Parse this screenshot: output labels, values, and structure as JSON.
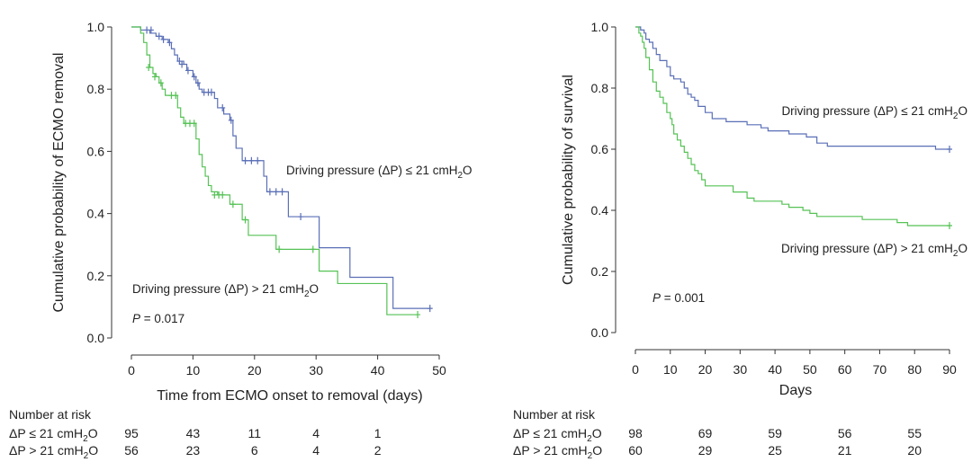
{
  "chart_data": [
    {
      "type": "line",
      "subtype": "kaplan-meier",
      "xlabel": "Time from ECMO onset to removal (days)",
      "ylabel": "Cumulative probability of ECMO removal",
      "xlim": [
        0,
        50
      ],
      "ylim": [
        0,
        1
      ],
      "xticks": [
        "0",
        "10",
        "20",
        "30",
        "40",
        "50"
      ],
      "yticks": [
        "0.0",
        "0.2",
        "0.4",
        "0.6",
        "0.8",
        "1.0"
      ],
      "grid": false,
      "pvalue": {
        "italic": "P",
        "text": " = 0.017"
      },
      "series": [
        {
          "name": "Driving pressure (ΔP) ≤ 21 cmH2O",
          "label": {
            "main": "Driving pressure (ΔP) ≤ 21 cmH",
            "sub": "2",
            "tail": "O"
          },
          "color": "#5a6fb6",
          "steps": [
            [
              0,
              1.0
            ],
            [
              1.5,
              0.99
            ],
            [
              3,
              0.98
            ],
            [
              4,
              0.97
            ],
            [
              5,
              0.96
            ],
            [
              6,
              0.95
            ],
            [
              6.5,
              0.93
            ],
            [
              7,
              0.91
            ],
            [
              7.5,
              0.89
            ],
            [
              8.5,
              0.88
            ],
            [
              9,
              0.86
            ],
            [
              10,
              0.84
            ],
            [
              10.5,
              0.82
            ],
            [
              11,
              0.8
            ],
            [
              11.5,
              0.79
            ],
            [
              13.5,
              0.77
            ],
            [
              14,
              0.74
            ],
            [
              15,
              0.72
            ],
            [
              16,
              0.7
            ],
            [
              16.5,
              0.65
            ],
            [
              17,
              0.61
            ],
            [
              18,
              0.57
            ],
            [
              21.5,
              0.52
            ],
            [
              22,
              0.47
            ],
            [
              25.5,
              0.39
            ],
            [
              30.5,
              0.29
            ],
            [
              35.5,
              0.195
            ],
            [
              42.5,
              0.095
            ],
            [
              48.5,
              0.095
            ]
          ],
          "censor": [
            [
              2.5,
              0.99
            ],
            [
              3.2,
              0.99
            ],
            [
              4.5,
              0.97
            ],
            [
              5.2,
              0.96
            ],
            [
              6.2,
              0.95
            ],
            [
              7.8,
              0.89
            ],
            [
              8.2,
              0.88
            ],
            [
              9.2,
              0.86
            ],
            [
              10.2,
              0.84
            ],
            [
              10.8,
              0.82
            ],
            [
              11.8,
              0.79
            ],
            [
              12.5,
              0.79
            ],
            [
              13,
              0.79
            ],
            [
              14.8,
              0.74
            ],
            [
              16.2,
              0.7
            ],
            [
              18.5,
              0.57
            ],
            [
              19.5,
              0.57
            ],
            [
              20.5,
              0.57
            ],
            [
              22.5,
              0.47
            ],
            [
              23.5,
              0.47
            ],
            [
              24.5,
              0.47
            ],
            [
              27.5,
              0.39
            ],
            [
              48.5,
              0.095
            ]
          ]
        },
        {
          "name": "Driving pressure (ΔP) > 21 cmH2O",
          "label": {
            "main": "Driving pressure (ΔP) > 21 cmH",
            "sub": "2",
            "tail": "O"
          },
          "color": "#55c255",
          "steps": [
            [
              0,
              1.0
            ],
            [
              1.5,
              0.98
            ],
            [
              2,
              0.95
            ],
            [
              2.5,
              0.91
            ],
            [
              3,
              0.87
            ],
            [
              3.5,
              0.85
            ],
            [
              4,
              0.84
            ],
            [
              4.5,
              0.82
            ],
            [
              5,
              0.8
            ],
            [
              5.5,
              0.78
            ],
            [
              7.5,
              0.74
            ],
            [
              8,
              0.71
            ],
            [
              8.5,
              0.69
            ],
            [
              10.5,
              0.64
            ],
            [
              11,
              0.59
            ],
            [
              11.5,
              0.55
            ],
            [
              12,
              0.52
            ],
            [
              12.5,
              0.49
            ],
            [
              13,
              0.47
            ],
            [
              14,
              0.46
            ],
            [
              16,
              0.43
            ],
            [
              18,
              0.38
            ],
            [
              19,
              0.33
            ],
            [
              23.5,
              0.285
            ],
            [
              30.5,
              0.215
            ],
            [
              33.5,
              0.175
            ],
            [
              41.5,
              0.075
            ],
            [
              46.5,
              0.075
            ]
          ],
          "censor": [
            [
              2.8,
              0.87
            ],
            [
              3.8,
              0.84
            ],
            [
              4.8,
              0.82
            ],
            [
              6.5,
              0.78
            ],
            [
              7.2,
              0.78
            ],
            [
              8.8,
              0.69
            ],
            [
              9.5,
              0.69
            ],
            [
              10.2,
              0.69
            ],
            [
              13.5,
              0.46
            ],
            [
              14.2,
              0.46
            ],
            [
              14.8,
              0.46
            ],
            [
              16.5,
              0.43
            ],
            [
              18.5,
              0.38
            ],
            [
              24,
              0.285
            ],
            [
              29.5,
              0.285
            ],
            [
              46.5,
              0.075
            ]
          ]
        }
      ],
      "risk_table": {
        "title": "Number at risk",
        "rows": [
          {
            "label": "ΔP ≤ 21 cmH2O",
            "label_main": "ΔP ≤ 21 cmH",
            "sub": "2",
            "tail": "O",
            "at": [
              0,
              10,
              20,
              30,
              40
            ],
            "values": [
              "95",
              "43",
              "11",
              "4",
              "1"
            ]
          },
          {
            "label": "ΔP > 21 cmH2O",
            "label_main": "ΔP > 21 cmH",
            "sub": "2",
            "tail": "O",
            "at": [
              0,
              10,
              20,
              30,
              40
            ],
            "values": [
              "56",
              "23",
              "6",
              "4",
              "2"
            ]
          }
        ]
      }
    },
    {
      "type": "line",
      "subtype": "kaplan-meier",
      "xlabel": "Days",
      "ylabel": "Cumulative probability of survival",
      "xlim": [
        0,
        90
      ],
      "ylim": [
        0,
        1
      ],
      "xticks": [
        "0",
        "10",
        "20",
        "30",
        "40",
        "50",
        "60",
        "70",
        "80",
        "90"
      ],
      "yticks": [
        "0.0",
        "0.2",
        "0.4",
        "0.6",
        "0.8",
        "1.0"
      ],
      "grid": false,
      "pvalue": {
        "italic": "P",
        "text": " = 0.001"
      },
      "series": [
        {
          "name": "Driving pressure (ΔP) ≤ 21 cmH2O",
          "label": {
            "main": "Driving pressure (ΔP) ≤ 21 cmH",
            "sub": "2",
            "tail": "O"
          },
          "color": "#5a6fb6",
          "steps": [
            [
              0,
              1.0
            ],
            [
              1.5,
              0.99
            ],
            [
              2.5,
              0.98
            ],
            [
              3,
              0.96
            ],
            [
              4,
              0.95
            ],
            [
              5,
              0.93
            ],
            [
              6,
              0.91
            ],
            [
              7,
              0.89
            ],
            [
              9,
              0.87
            ],
            [
              10,
              0.84
            ],
            [
              11,
              0.83
            ],
            [
              13,
              0.82
            ],
            [
              14,
              0.8
            ],
            [
              15,
              0.78
            ],
            [
              16,
              0.77
            ],
            [
              17,
              0.76
            ],
            [
              18,
              0.74
            ],
            [
              20,
              0.72
            ],
            [
              22,
              0.7
            ],
            [
              26,
              0.69
            ],
            [
              32,
              0.68
            ],
            [
              36,
              0.67
            ],
            [
              38,
              0.66
            ],
            [
              44,
              0.65
            ],
            [
              49,
              0.64
            ],
            [
              52,
              0.62
            ],
            [
              55,
              0.61
            ],
            [
              75,
              0.61
            ],
            [
              86,
              0.6
            ],
            [
              90,
              0.6
            ]
          ],
          "censor": [
            [
              90,
              0.6
            ]
          ]
        },
        {
          "name": "Driving pressure (ΔP) > 21 cmH2O",
          "label": {
            "main": "Driving pressure (ΔP) > 21 cmH",
            "sub": "2",
            "tail": "O"
          },
          "color": "#55c255",
          "steps": [
            [
              0,
              1.0
            ],
            [
              1,
              0.98
            ],
            [
              1.5,
              0.97
            ],
            [
              2,
              0.95
            ],
            [
              2.5,
              0.93
            ],
            [
              3,
              0.9
            ],
            [
              4,
              0.86
            ],
            [
              5,
              0.82
            ],
            [
              6,
              0.79
            ],
            [
              7,
              0.77
            ],
            [
              8,
              0.75
            ],
            [
              9,
              0.72
            ],
            [
              10,
              0.7
            ],
            [
              10.5,
              0.68
            ],
            [
              11,
              0.65
            ],
            [
              12,
              0.63
            ],
            [
              13,
              0.61
            ],
            [
              14,
              0.59
            ],
            [
              15,
              0.57
            ],
            [
              16,
              0.55
            ],
            [
              17,
              0.53
            ],
            [
              18,
              0.52
            ],
            [
              19,
              0.5
            ],
            [
              20,
              0.48
            ],
            [
              24,
              0.48
            ],
            [
              28,
              0.46
            ],
            [
              32,
              0.44
            ],
            [
              34,
              0.43
            ],
            [
              42,
              0.42
            ],
            [
              44,
              0.41
            ],
            [
              48,
              0.4
            ],
            [
              50,
              0.39
            ],
            [
              52,
              0.38
            ],
            [
              60,
              0.38
            ],
            [
              65,
              0.37
            ],
            [
              75,
              0.36
            ],
            [
              78,
              0.35
            ],
            [
              90,
              0.35
            ]
          ],
          "censor": [
            [
              90,
              0.35
            ]
          ]
        }
      ],
      "risk_table": {
        "title": "Number at risk",
        "rows": [
          {
            "label": "ΔP ≤ 21 cmH2O",
            "label_main": "ΔP ≤ 21 cmH",
            "sub": "2",
            "tail": "O",
            "at": [
              0,
              20,
              40,
              60,
              80
            ],
            "values": [
              "98",
              "69",
              "59",
              "56",
              "55"
            ]
          },
          {
            "label": "ΔP > 21 cmH2O",
            "label_main": "ΔP > 21 cmH",
            "sub": "2",
            "tail": "O",
            "at": [
              0,
              20,
              40,
              60,
              80
            ],
            "values": [
              "60",
              "29",
              "25",
              "21",
              "20"
            ]
          }
        ]
      }
    }
  ]
}
